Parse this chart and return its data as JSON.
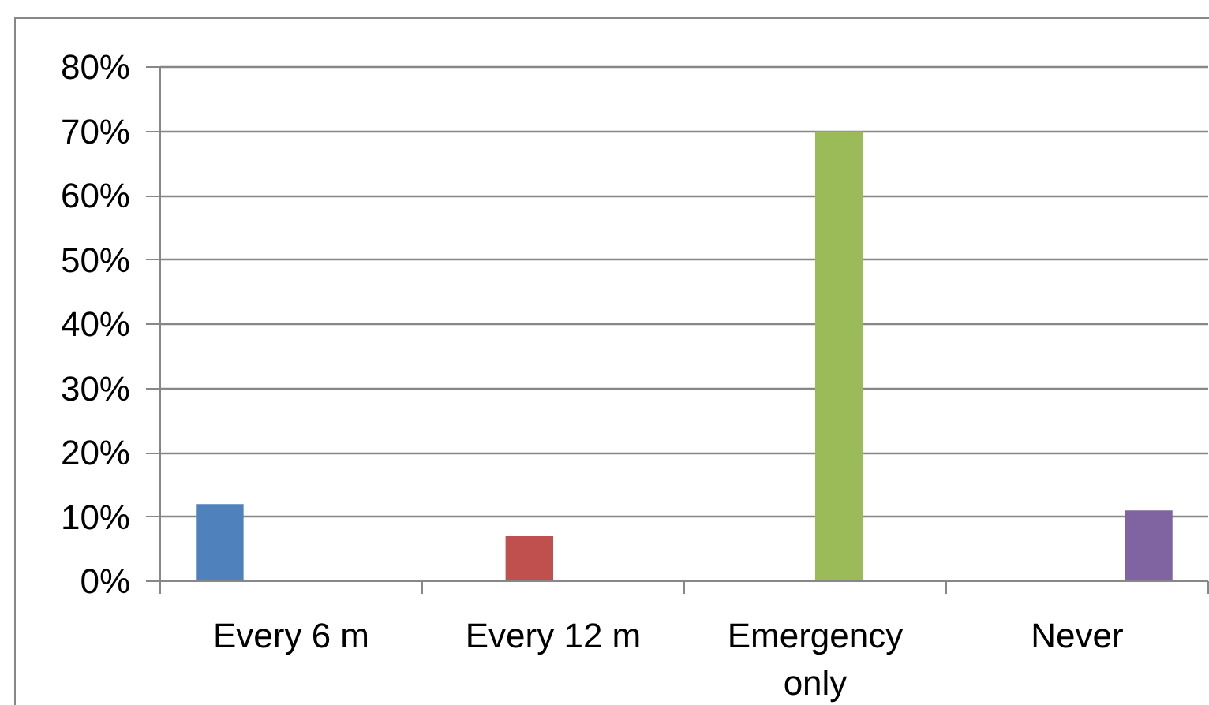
{
  "chart_data": {
    "type": "bar",
    "categories": [
      "Every 6 m",
      "Every 12 m",
      "Emergency only",
      "Never"
    ],
    "series": [
      {
        "color": "#4f81bd",
        "values": [
          12,
          null,
          null,
          null
        ]
      },
      {
        "color": "#c0504d",
        "values": [
          null,
          7,
          null,
          null
        ]
      },
      {
        "color": "#9bbb59",
        "values": [
          null,
          null,
          70,
          null
        ]
      },
      {
        "color": "#8064a2",
        "values": [
          null,
          null,
          null,
          11
        ]
      }
    ],
    "ylim": [
      0,
      80
    ],
    "yticks": [
      {
        "value": 0,
        "label": "0%"
      },
      {
        "value": 10,
        "label": "10%"
      },
      {
        "value": 20,
        "label": "20%"
      },
      {
        "value": 30,
        "label": "30%"
      },
      {
        "value": 40,
        "label": "40%"
      },
      {
        "value": 50,
        "label": "50%"
      },
      {
        "value": 60,
        "label": "60%"
      },
      {
        "value": 70,
        "label": "70%"
      },
      {
        "value": 80,
        "label": "80%"
      }
    ],
    "grid": "y"
  }
}
